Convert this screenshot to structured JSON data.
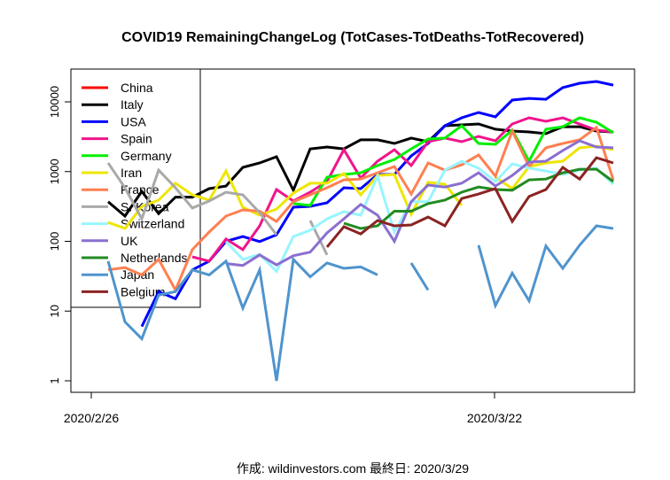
{
  "chart_data": {
    "type": "line",
    "title": "COVID19 RemainingChangeLog (TotCases-TotDeaths-TotRecovered)",
    "footer": "作成: wildinvestors.com 最終日: 2020/3/29",
    "xlabel": "",
    "ylabel": "",
    "y_scale": "log",
    "ylim": [
      1,
      20000
    ],
    "y_ticks": [
      "1",
      "10",
      "100",
      "1000",
      "10000"
    ],
    "x_ticks": [
      "2020/2/26",
      "2020/3/22"
    ],
    "grid": false,
    "legend_placement": "top-left",
    "x": [
      "2020/2/28",
      "2020/2/29",
      "2020/3/1",
      "2020/3/2",
      "2020/3/3",
      "2020/3/4",
      "2020/3/5",
      "2020/3/6",
      "2020/3/7",
      "2020/3/8",
      "2020/3/9",
      "2020/3/10",
      "2020/3/11",
      "2020/3/12",
      "2020/3/13",
      "2020/3/14",
      "2020/3/15",
      "2020/3/16",
      "2020/3/17",
      "2020/3/18",
      "2020/3/19",
      "2020/3/20",
      "2020/3/21",
      "2020/3/22",
      "2020/3/23",
      "2020/3/24",
      "2020/3/25",
      "2020/3/26",
      "2020/3/27",
      "2020/3/28",
      "2020/3/29"
    ],
    "series": [
      {
        "name": "China",
        "color": "#FF0000",
        "values": [
          null,
          null,
          null,
          null,
          null,
          null,
          null,
          null,
          null,
          null,
          null,
          null,
          null,
          null,
          null,
          null,
          null,
          null,
          null,
          null,
          null,
          null,
          null,
          null,
          null,
          null,
          null,
          null,
          null,
          null,
          null
        ]
      },
      {
        "name": "Italy",
        "color": "#000000",
        "values": [
          370,
          230,
          520,
          250,
          430,
          430,
          570,
          620,
          1150,
          1330,
          1630,
          540,
          2120,
          2250,
          2120,
          2850,
          2850,
          2530,
          3020,
          2680,
          4540,
          4680,
          4820,
          4050,
          3810,
          3700,
          3500,
          4400,
          4400,
          3810,
          3700
        ]
      },
      {
        "name": "USA",
        "color": "#0000FF",
        "values": [
          null,
          null,
          6,
          19,
          15,
          39,
          52,
          100,
          117,
          99,
          124,
          308,
          317,
          357,
          587,
          570,
          910,
          910,
          1680,
          2530,
          4540,
          5900,
          7050,
          6100,
          10600,
          11200,
          10900,
          16000,
          18500,
          19600,
          17400
        ]
      },
      {
        "name": "Spain",
        "color": "#F0148C",
        "values": [
          null,
          null,
          null,
          null,
          null,
          60,
          52,
          108,
          76,
          167,
          553,
          378,
          507,
          720,
          2060,
          810,
          1410,
          2060,
          1220,
          2680,
          3020,
          2680,
          3200,
          2760,
          4820,
          5900,
          5250,
          5900,
          4820,
          3930,
          3700
        ]
      },
      {
        "name": "Germany",
        "color": "#00EE00",
        "values": [
          null,
          null,
          null,
          null,
          null,
          null,
          null,
          null,
          null,
          null,
          null,
          347,
          327,
          830,
          910,
          960,
          1220,
          1490,
          2120,
          2930,
          3020,
          4540,
          2530,
          2460,
          3930,
          1410,
          4050,
          4400,
          5900,
          5100,
          3600
        ]
      },
      {
        "name": "Iran",
        "color": "#EEE600",
        "values": [
          187,
          153,
          317,
          390,
          680,
          464,
          390,
          1020,
          308,
          237,
          290,
          490,
          680,
          680,
          940,
          464,
          880,
          910,
          244,
          700,
          660,
          327,
          null,
          830,
          570,
          1180,
          1330,
          1410,
          2190,
          2320,
          2060
        ]
      },
      {
        "name": "France",
        "color": "#FF7F50",
        "values": [
          39,
          42,
          33,
          55,
          20,
          76,
          136,
          230,
          282,
          270,
          193,
          370,
          464,
          587,
          760,
          780,
          960,
          1180,
          477,
          1330,
          1050,
          1250,
          1730,
          860,
          3810,
          1180,
          2190,
          2530,
          2850,
          4290,
          760
        ]
      },
      {
        "name": "S. Korea",
        "color": "#A9A9A9",
        "values": [
          1330,
          587,
          210,
          1050,
          587,
          300,
          378,
          507,
          464,
          258,
          124,
          null,
          199,
          64,
          null,
          null,
          null,
          null,
          null,
          null,
          null,
          null,
          null,
          null,
          null,
          null,
          null,
          null,
          null,
          null,
          null
        ]
      },
      {
        "name": "Switzerland",
        "color": "#98F5FF",
        "values": [
          null,
          null,
          null,
          null,
          null,
          null,
          null,
          99,
          55,
          65,
          37,
          117,
          144,
          210,
          266,
          237,
          860,
          136,
          370,
          370,
          1050,
          1410,
          1120,
          720,
          1290,
          1120,
          1020,
          910,
          1050,
          1120,
          660
        ]
      },
      {
        "name": "UK",
        "color": "#8B6FD0",
        "values": [
          null,
          null,
          null,
          null,
          null,
          null,
          null,
          48,
          45,
          64,
          46,
          62,
          70,
          132,
          210,
          337,
          237,
          100,
          370,
          640,
          600,
          680,
          960,
          620,
          880,
          1370,
          1410,
          2000,
          2760,
          2250,
          2190
        ]
      },
      {
        "name": "Netherlands",
        "color": "#228B22",
        "values": [
          null,
          null,
          null,
          null,
          null,
          null,
          null,
          null,
          null,
          null,
          null,
          null,
          null,
          null,
          182,
          153,
          167,
          270,
          270,
          347,
          390,
          507,
          600,
          553,
          540,
          760,
          780,
          960,
          1080,
          1080,
          720
        ]
      },
      {
        "name": "Japan",
        "color": "#4F94CD",
        "values": [
          52,
          7,
          4,
          17,
          19,
          39,
          33,
          52,
          11,
          39,
          1,
          55,
          31,
          49,
          41,
          43,
          33,
          null,
          49,
          20,
          null,
          null,
          88,
          12,
          35,
          14,
          86,
          41,
          88,
          167,
          153
        ]
      },
      {
        "name": "Belgium",
        "color": "#8B2323",
        "values": [
          null,
          null,
          null,
          null,
          null,
          null,
          null,
          null,
          null,
          null,
          null,
          null,
          null,
          83,
          162,
          128,
          199,
          167,
          172,
          223,
          167,
          410,
          477,
          570,
          193,
          440,
          553,
          1150,
          780,
          1580,
          1330
        ]
      }
    ]
  }
}
